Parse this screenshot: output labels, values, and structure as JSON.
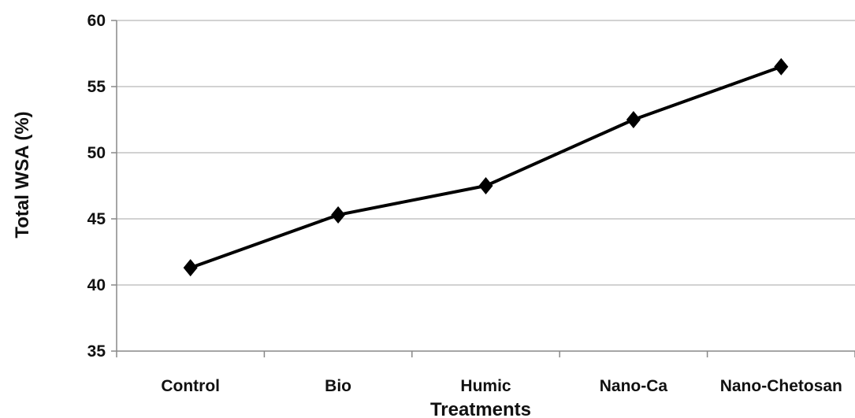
{
  "chart_data": {
    "type": "line",
    "title": "",
    "xlabel": "Treatments",
    "ylabel": "Total WSA (%)",
    "categories": [
      "Control",
      "Bio",
      "Humic",
      "Nano-Ca",
      "Nano-Chetosan"
    ],
    "series": [
      {
        "values": [
          41.3,
          45.3,
          47.5,
          52.5,
          56.5
        ]
      }
    ],
    "ylim": [
      35,
      60
    ],
    "yticks": [
      35,
      40,
      45,
      50,
      55,
      60
    ],
    "grid": "horizontal",
    "legend": "none",
    "marker": "diamond",
    "colors": {
      "line": "#000000",
      "grid": "#a6a6a6",
      "axis": "#888888"
    }
  }
}
